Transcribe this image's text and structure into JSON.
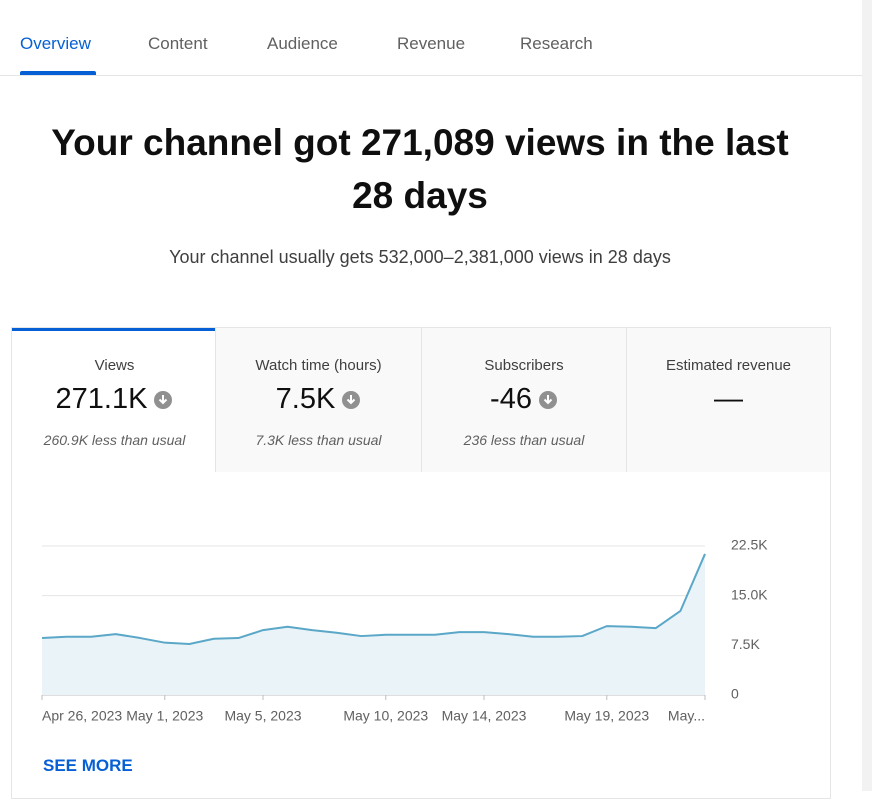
{
  "tabs": [
    "Overview",
    "Content",
    "Audience",
    "Revenue",
    "Research"
  ],
  "headline": "Your channel got 271,089 views in the last 28 days",
  "subheadline": "Your channel usually gets 532,000–2,381,000 views in 28 days",
  "metrics": [
    {
      "label": "Views",
      "value": "271.1K",
      "note": "260.9K less than usual"
    },
    {
      "label": "Watch time (hours)",
      "value": "7.5K",
      "note": "7.3K less than usual"
    },
    {
      "label": "Subscribers",
      "value": "-46",
      "note": "236 less than usual"
    },
    {
      "label": "Estimated revenue",
      "value": "—"
    }
  ],
  "chart_data": {
    "type": "line",
    "categories": [
      "Apr 26, 2023",
      null,
      null,
      null,
      null,
      "May 1, 2023",
      null,
      null,
      null,
      "May 5, 2023",
      null,
      null,
      null,
      null,
      "May 10, 2023",
      null,
      null,
      null,
      "May 14, 2023",
      null,
      null,
      null,
      null,
      "May 19, 2023",
      null,
      null,
      null,
      "May..."
    ],
    "values": [
      8.6,
      8.8,
      8.8,
      9.2,
      8.6,
      7.9,
      7.7,
      8.5,
      8.6,
      9.8,
      10.3,
      9.8,
      9.4,
      8.9,
      9.1,
      9.1,
      9.1,
      9.5,
      9.5,
      9.2,
      8.8,
      8.8,
      8.9,
      10.4,
      10.3,
      10.1,
      12.7,
      21.3
    ],
    "color": "#5aa7c8",
    "area": true,
    "area_color": "#eaf4f8",
    "ylim": [
      0,
      22.5
    ],
    "yticks": [
      0,
      {
        "value": 7.5,
        "label": "7.5K"
      },
      {
        "value": 15,
        "label": "15.0K"
      },
      {
        "value": 22.5,
        "label": "22.5K"
      }
    ],
    "grid": true
  },
  "see_more": "SEE MORE"
}
